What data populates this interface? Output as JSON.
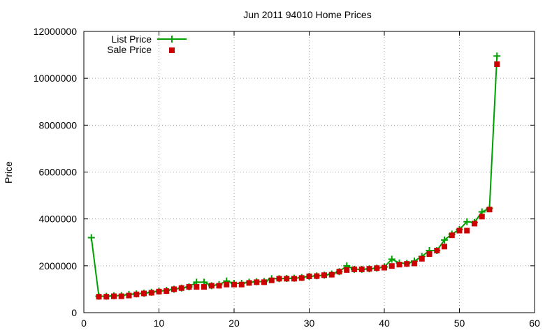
{
  "chart_data": {
    "type": "line",
    "title": "Jun 2011 94010 Home Prices",
    "xlabel": "",
    "ylabel": "Price",
    "xlim": [
      0,
      60
    ],
    "ylim": [
      0,
      12000000
    ],
    "xticks": [
      0,
      10,
      20,
      30,
      40,
      50,
      60
    ],
    "yticks": [
      0,
      2000000,
      4000000,
      6000000,
      8000000,
      10000000,
      12000000
    ],
    "grid": true,
    "legend_position": "top-left",
    "x": [
      1,
      2,
      3,
      4,
      5,
      6,
      7,
      8,
      9,
      10,
      11,
      12,
      13,
      14,
      15,
      16,
      17,
      18,
      19,
      20,
      21,
      22,
      23,
      24,
      25,
      26,
      27,
      28,
      29,
      30,
      31,
      32,
      33,
      34,
      35,
      36,
      37,
      38,
      39,
      40,
      41,
      42,
      43,
      44,
      45,
      46,
      47,
      48,
      49,
      50,
      51,
      52,
      53,
      54,
      55
    ],
    "series": [
      {
        "name": "List Price",
        "style": "linespoints",
        "marker": "plus",
        "color": "#00a000",
        "values": [
          3200000,
          700000,
          700000,
          720000,
          730000,
          780000,
          800000,
          830000,
          870000,
          920000,
          950000,
          1000000,
          1050000,
          1100000,
          1300000,
          1300000,
          1150000,
          1200000,
          1350000,
          1250000,
          1250000,
          1300000,
          1320000,
          1330000,
          1450000,
          1450000,
          1460000,
          1470000,
          1500000,
          1550000,
          1570000,
          1600000,
          1650000,
          1750000,
          2000000,
          1850000,
          1850000,
          1870000,
          1900000,
          1950000,
          2280000,
          2120000,
          2100000,
          2200000,
          2400000,
          2650000,
          2650000,
          3100000,
          3350000,
          3550000,
          3880000,
          3850000,
          4300000,
          4450000,
          10950000
        ]
      },
      {
        "name": "Sale Price",
        "style": "points",
        "marker": "square",
        "color": "#cc0000",
        "values": [
          null,
          680000,
          680000,
          700000,
          700000,
          730000,
          780000,
          820000,
          850000,
          900000,
          920000,
          1000000,
          1050000,
          1100000,
          1100000,
          1100000,
          1150000,
          1150000,
          1200000,
          1200000,
          1200000,
          1270000,
          1300000,
          1300000,
          1380000,
          1450000,
          1450000,
          1450000,
          1480000,
          1550000,
          1560000,
          1600000,
          1620000,
          1750000,
          1820000,
          1850000,
          1850000,
          1870000,
          1900000,
          1920000,
          1990000,
          2050000,
          2080000,
          2100000,
          2300000,
          2500000,
          2650000,
          2820000,
          3300000,
          3500000,
          3500000,
          3800000,
          4100000,
          4400000,
          10600000
        ]
      }
    ]
  }
}
